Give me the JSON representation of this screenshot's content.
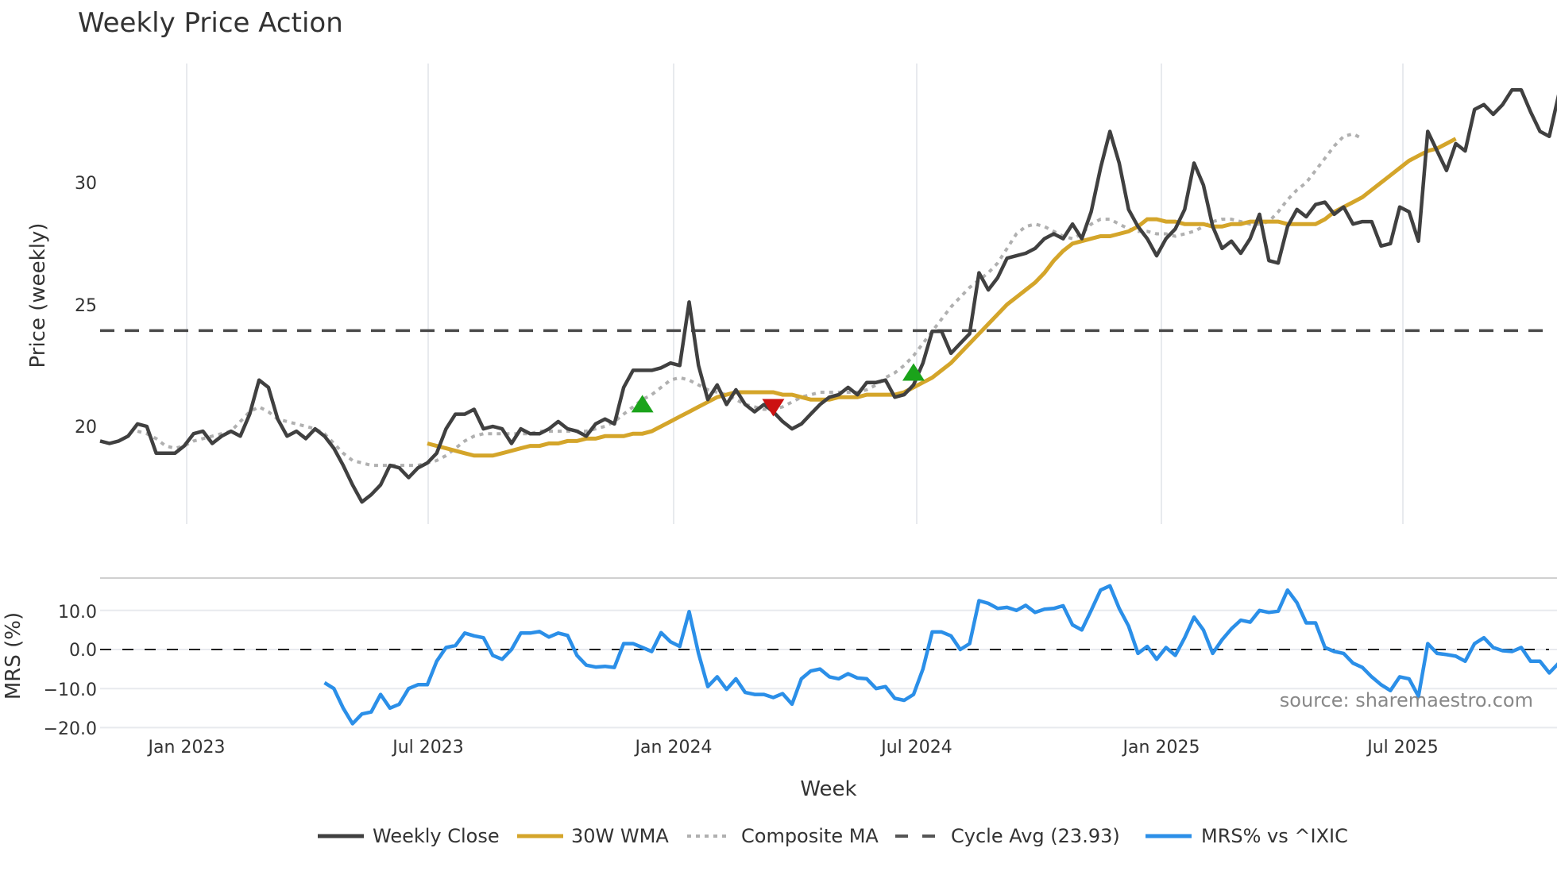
{
  "title": "Weekly Price Action",
  "source": "source: sharemaestro.com",
  "legend": [
    {
      "label": "Weekly Close",
      "color": "#404040",
      "style": "solid"
    },
    {
      "label": "30W WMA",
      "color": "#d4a52a",
      "style": "solid"
    },
    {
      "label": "Composite MA",
      "color": "#b0b0b0",
      "style": "dotted"
    },
    {
      "label": "Cycle Avg (23.93)",
      "color": "#555555",
      "style": "dashed"
    },
    {
      "label": "MRS% vs ^IXIC",
      "color": "#2b8fe8",
      "style": "solid"
    }
  ],
  "colors": {
    "close": "#404040",
    "wma": "#d4a52a",
    "composite": "#b0b0b0",
    "cycle": "#4a4a4a",
    "mrs": "#2b8fe8",
    "buy": "#1aa31a",
    "sell": "#cc1111",
    "grid": "#e8eaee"
  },
  "chart_data": [
    {
      "type": "line",
      "title": "Weekly Price Action",
      "xlabel": "Week",
      "ylabel": "Price (weekly)",
      "x_ticks": [
        "Jan 2023",
        "Jul 2023",
        "Jan 2024",
        "Jul 2024",
        "Jan 2025",
        "Jul 2025"
      ],
      "y_ticks": [
        20,
        25,
        30
      ],
      "ylim": [
        16,
        35
      ],
      "cycle_avg": 23.93,
      "series": [
        {
          "name": "Weekly Close",
          "start_week": 0,
          "values": [
            19.4,
            19.3,
            19.4,
            19.6,
            20.1,
            20.0,
            18.9,
            18.9,
            18.9,
            19.2,
            19.7,
            19.8,
            19.3,
            19.6,
            19.8,
            19.6,
            20.5,
            21.9,
            21.6,
            20.3,
            19.6,
            19.8,
            19.5,
            19.9,
            19.6,
            19.1,
            18.4,
            17.6,
            16.9,
            17.2,
            17.6,
            18.4,
            18.3,
            17.9,
            18.3,
            18.5,
            18.9,
            19.9,
            20.5,
            20.5,
            20.7,
            19.9,
            20.0,
            19.9,
            19.3,
            19.9,
            19.7,
            19.7,
            19.9,
            20.2,
            19.9,
            19.8,
            19.6,
            20.1,
            20.3,
            20.1,
            21.6,
            22.3,
            22.3,
            22.3,
            22.4,
            22.6,
            22.5,
            25.1,
            22.5,
            21.1,
            21.7,
            20.9,
            21.5,
            20.9,
            20.6,
            20.9,
            20.6,
            20.2,
            19.9,
            20.1,
            20.5,
            20.9,
            21.2,
            21.3,
            21.6,
            21.3,
            21.8,
            21.8,
            21.9,
            21.2,
            21.3,
            21.7,
            22.6,
            23.9,
            23.9,
            23.0,
            23.4,
            23.8,
            26.3,
            25.6,
            26.1,
            26.9,
            27.0,
            27.1,
            27.3,
            27.7,
            27.9,
            27.7,
            28.3,
            27.7,
            28.8,
            30.6,
            32.1,
            30.8,
            28.9,
            28.2,
            27.7,
            27.0,
            27.7,
            28.1,
            28.9,
            30.8,
            29.9,
            28.2,
            27.3,
            27.6,
            27.1,
            27.7,
            28.7,
            26.8,
            26.7,
            28.2,
            28.9,
            28.6,
            29.1,
            29.2,
            28.7,
            29.0,
            28.3,
            28.4,
            28.4,
            27.4,
            27.5,
            29.0,
            28.8,
            27.6,
            32.1,
            31.3,
            30.5,
            31.6,
            31.3,
            33.0,
            33.2,
            32.8,
            33.2,
            33.8,
            33.8,
            32.9,
            32.1,
            31.9,
            33.6
          ]
        },
        {
          "name": "30W WMA",
          "start_week": 35,
          "values": [
            19.3,
            19.2,
            19.1,
            19.0,
            18.9,
            18.8,
            18.8,
            18.8,
            18.9,
            19.0,
            19.1,
            19.2,
            19.2,
            19.3,
            19.3,
            19.4,
            19.4,
            19.5,
            19.5,
            19.6,
            19.6,
            19.6,
            19.7,
            19.7,
            19.8,
            20.0,
            20.2,
            20.4,
            20.6,
            20.8,
            21.0,
            21.2,
            21.3,
            21.4,
            21.4,
            21.4,
            21.4,
            21.4,
            21.3,
            21.3,
            21.2,
            21.1,
            21.1,
            21.1,
            21.2,
            21.2,
            21.2,
            21.3,
            21.3,
            21.3,
            21.3,
            21.4,
            21.6,
            21.8,
            22.0,
            22.3,
            22.6,
            23.0,
            23.4,
            23.8,
            24.2,
            24.6,
            25.0,
            25.3,
            25.6,
            25.9,
            26.3,
            26.8,
            27.2,
            27.5,
            27.6,
            27.7,
            27.8,
            27.8,
            27.9,
            28.0,
            28.2,
            28.5,
            28.5,
            28.4,
            28.4,
            28.3,
            28.3,
            28.3,
            28.2,
            28.2,
            28.3,
            28.3,
            28.4,
            28.4,
            28.4,
            28.4,
            28.3,
            28.3,
            28.3,
            28.3,
            28.5,
            28.8,
            29.0,
            29.2,
            29.4,
            29.7,
            30.0,
            30.3,
            30.6,
            30.9,
            31.1,
            31.3,
            31.4,
            31.6,
            31.8
          ]
        },
        {
          "name": "Composite MA",
          "start_week": 4,
          "values": [
            19.8,
            19.7,
            19.5,
            19.2,
            19.1,
            19.2,
            19.4,
            19.5,
            19.6,
            19.7,
            19.8,
            20.2,
            20.6,
            20.8,
            20.6,
            20.3,
            20.2,
            20.1,
            20.0,
            19.9,
            19.7,
            19.3,
            18.9,
            18.6,
            18.5,
            18.4,
            18.4,
            18.4,
            18.4,
            18.4,
            18.4,
            18.5,
            18.6,
            18.8,
            19.1,
            19.4,
            19.6,
            19.7,
            19.7,
            19.7,
            19.7,
            19.7,
            19.7,
            19.8,
            19.8,
            19.8,
            19.8,
            19.8,
            19.8,
            19.9,
            20.0,
            20.2,
            20.5,
            20.8,
            21.1,
            21.3,
            21.6,
            21.9,
            22.0,
            21.9,
            21.7,
            21.5,
            21.4,
            21.3,
            21.1,
            20.9,
            20.8,
            20.7,
            20.7,
            20.8,
            21.0,
            21.2,
            21.3,
            21.4,
            21.4,
            21.4,
            21.4,
            21.4,
            21.5,
            21.7,
            22.0,
            22.2,
            22.5,
            22.9,
            23.4,
            23.9,
            24.4,
            24.9,
            25.3,
            25.7,
            26.0,
            26.3,
            26.7,
            27.3,
            27.9,
            28.2,
            28.3,
            28.2,
            28.0,
            27.8,
            27.7,
            27.9,
            28.3,
            28.5,
            28.5,
            28.3,
            28.1,
            28.0,
            28.0,
            27.9,
            27.9,
            27.8,
            27.9,
            28.0,
            28.2,
            28.4,
            28.5,
            28.5,
            28.4,
            28.3,
            28.3,
            28.4,
            28.8,
            29.3,
            29.7,
            30.0,
            30.5,
            31.0,
            31.5,
            31.9,
            32.0,
            31.8
          ]
        },
        {
          "name": "Cycle Avg",
          "constant": 23.93
        }
      ],
      "markers": [
        {
          "type": "buy",
          "shape": "triangle-up",
          "color": "#1aa31a",
          "week": 58,
          "price": 20.9
        },
        {
          "type": "sell",
          "shape": "triangle-down",
          "color": "#cc1111",
          "week": 72,
          "price": 20.8
        },
        {
          "type": "buy",
          "shape": "triangle-up",
          "color": "#1aa31a",
          "week": 87,
          "price": 22.2
        }
      ]
    },
    {
      "type": "line",
      "ylabel": "MRS (%)",
      "xlabel": "Week",
      "x_ticks": [
        "Jan 2023",
        "Jul 2023",
        "Jan 2024",
        "Jul 2024",
        "Jan 2025",
        "Jul 2025"
      ],
      "y_ticks": [
        -20.0,
        -10.0,
        0.0,
        10.0
      ],
      "ylim": [
        -22,
        17
      ],
      "zero_line": 0.0,
      "series": [
        {
          "name": "MRS% vs ^IXIC",
          "start_week": 24,
          "values": [
            -8.5,
            -10,
            -15,
            -19,
            -16.5,
            -16,
            -11.5,
            -15,
            -14,
            -10,
            -9,
            -9,
            -3,
            0.5,
            1,
            4.2,
            3.5,
            3,
            -1.5,
            -2.5,
            0,
            4.2,
            4.2,
            4.6,
            3.2,
            4.2,
            3.6,
            -1.5,
            -4,
            -4.5,
            -4.3,
            -4.6,
            1.5,
            1.5,
            0.5,
            -0.5,
            4.3,
            2,
            0.8,
            9.7,
            -1,
            -9.5,
            -7,
            -10.2,
            -7.5,
            -11,
            -11.5,
            -11.5,
            -12.3,
            -11.3,
            -14,
            -7.5,
            -5.5,
            -5,
            -7,
            -7.5,
            -6.2,
            -7.3,
            -7.5,
            -10,
            -9.5,
            -12.5,
            -13,
            -11.5,
            -5,
            4.5,
            4.5,
            3.5,
            0,
            1.5,
            12.5,
            11.8,
            10.5,
            10.8,
            10,
            11.3,
            9.5,
            10.3,
            10.5,
            11.2,
            6.3,
            5,
            10,
            15.2,
            16.3,
            10.5,
            6,
            -1,
            0.8,
            -2.5,
            0.5,
            -1.5,
            3,
            8.3,
            5,
            -1,
            2.5,
            5.3,
            7.5,
            7,
            10,
            9.5,
            9.8,
            15.2,
            12,
            6.8,
            6.8,
            0.5,
            -0.5,
            -1,
            -3.5,
            -4.6,
            -7,
            -9,
            -10.5,
            -7,
            -7.5,
            -12,
            1.5,
            -1,
            -1.3,
            -1.7,
            -3,
            1.5,
            3,
            0.5,
            -0.3,
            -0.5,
            0.5,
            -3,
            -3,
            -6,
            -3.5
          ]
        }
      ]
    }
  ],
  "axes": {
    "price_ylabel": "Price (weekly)",
    "mrs_ylabel": "MRS (%)",
    "xlabel": "Week",
    "price_ticks": [
      "20",
      "25",
      "30"
    ],
    "mrs_ticks": [
      "10.0",
      "0.0",
      "−10.0",
      "−20.0"
    ],
    "x_ticks": [
      "Jan 2023",
      "Jul 2023",
      "Jan 2024",
      "Jul 2024",
      "Jan 2025",
      "Jul 2025"
    ]
  }
}
